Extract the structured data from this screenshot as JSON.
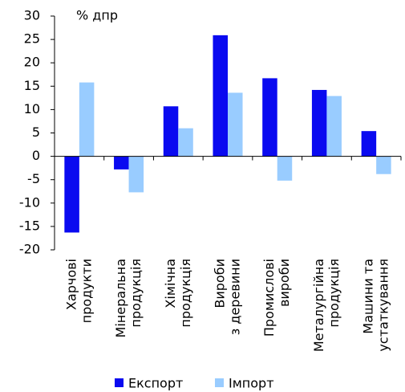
{
  "chart_data": {
    "type": "bar",
    "y_axis_label": "% дпр",
    "categories": [
      "Харчові\nпродукти",
      "Мінеральна\nпродукція",
      "Хімічна\nпродукція",
      "Вироби\nз деревини",
      "Промислові\nвироби",
      "Металургійна\nпродукція",
      "Машини та\nустаткування"
    ],
    "series": [
      {
        "name": "Експорт",
        "color": "#0a0af0",
        "values": [
          -16.3,
          -2.8,
          10.7,
          25.9,
          16.7,
          14.2,
          5.4
        ]
      },
      {
        "name": "Імпорт",
        "color": "#99ccff",
        "values": [
          15.8,
          -7.7,
          6.0,
          13.6,
          -5.2,
          12.9,
          -3.8
        ]
      }
    ],
    "ylim": [
      -20,
      30
    ],
    "yticks": [
      -20,
      -15,
      -10,
      -5,
      0,
      5,
      10,
      15,
      20,
      25,
      30
    ],
    "grid": false,
    "legend": "bottom"
  }
}
